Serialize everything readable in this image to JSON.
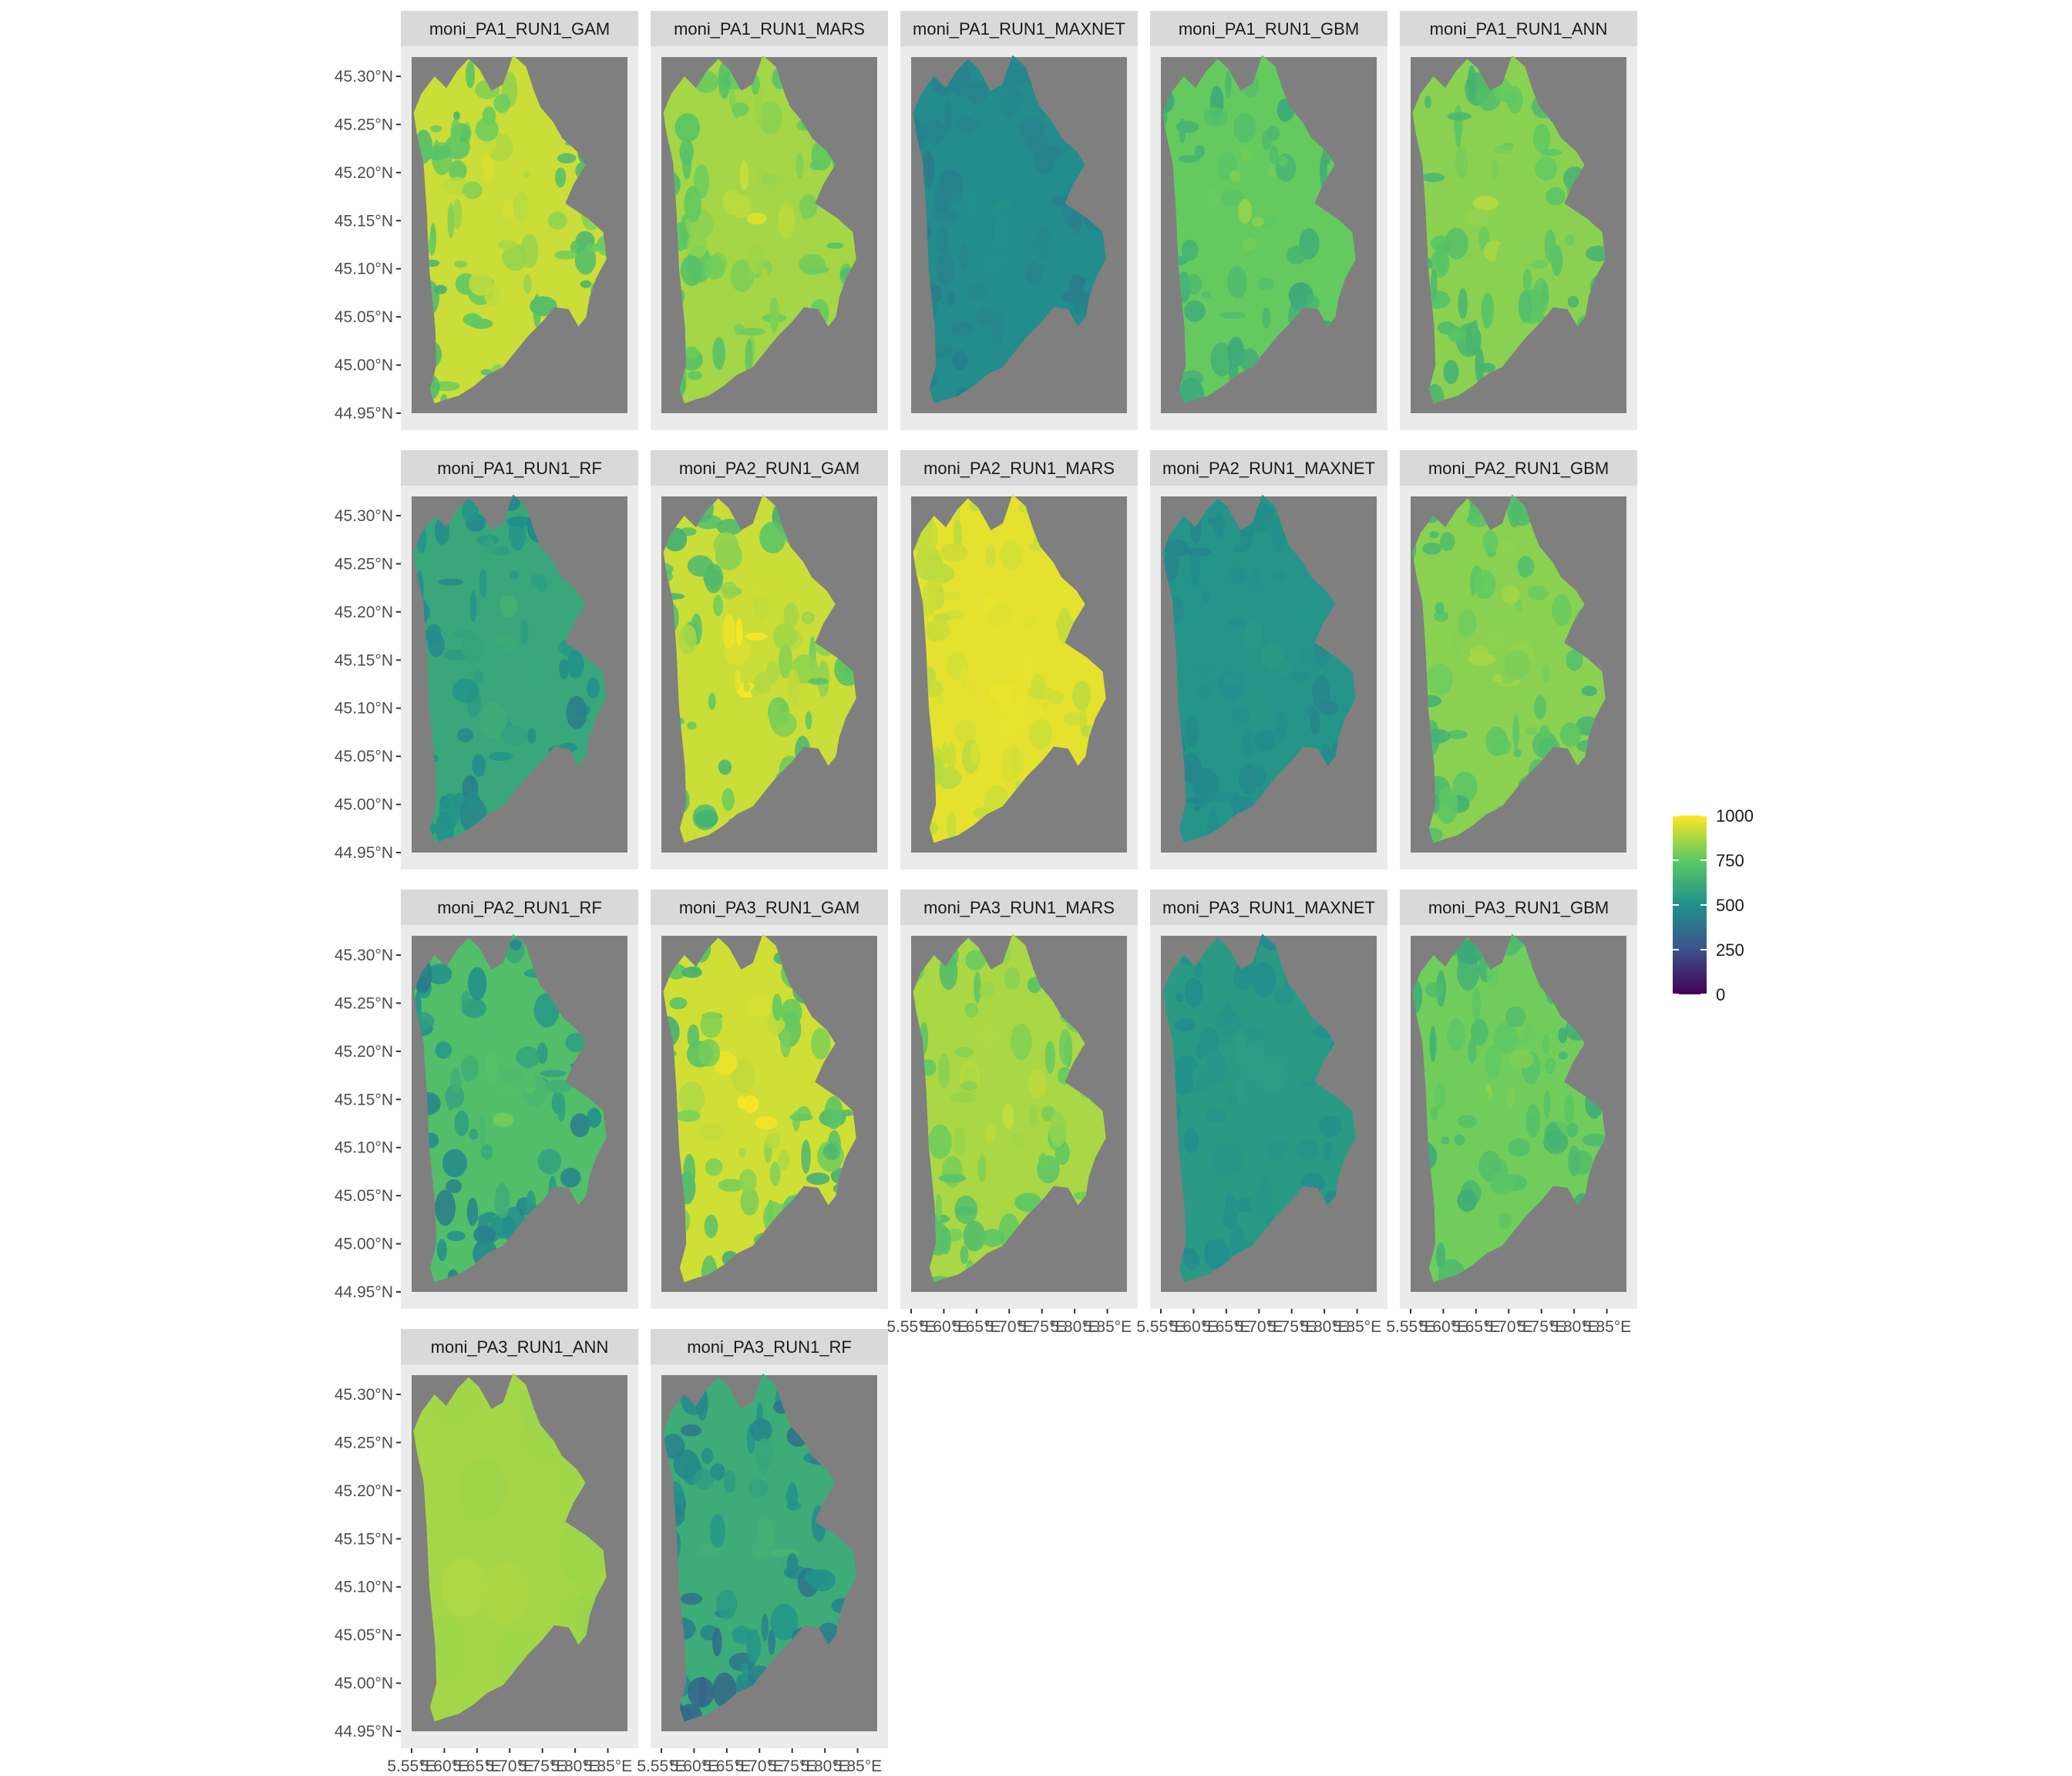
{
  "chart_data": {
    "type": "heatmap",
    "layout": {
      "rows": 4,
      "cols": 5
    },
    "x_axis": {
      "ticks": [
        "5.55°E",
        "5.60°E",
        "5.65°E",
        "5.70°E",
        "5.75°E",
        "5.80°E",
        "5.85°E"
      ],
      "xlim": [
        5.55,
        5.88
      ]
    },
    "y_axis": {
      "ticks": [
        "45.30°N",
        "45.25°N",
        "45.20°N",
        "45.15°N",
        "45.10°N",
        "45.05°N",
        "45.00°N",
        "44.95°N"
      ],
      "ylim": [
        44.95,
        45.32
      ]
    },
    "panel_background": "#7f7f7f",
    "strip_background": "#d9d9d9",
    "legend": {
      "title": "",
      "position": "right",
      "labels": [
        "1000",
        "750",
        "500",
        "250",
        "0"
      ],
      "range": [
        0,
        1000
      ],
      "colors": [
        "#440154",
        "#3b528b",
        "#21908c",
        "#5dc863",
        "#fde725"
      ]
    },
    "panels": [
      {
        "title": "moni_PA1_RUN1_GAM",
        "mean_value": 920,
        "spread": "high"
      },
      {
        "title": "moni_PA1_RUN1_MARS",
        "mean_value": 860,
        "spread": "medium"
      },
      {
        "title": "moni_PA1_RUN1_MAXNET",
        "mean_value": 480,
        "spread": "low"
      },
      {
        "title": "moni_PA1_RUN1_GBM",
        "mean_value": 760,
        "spread": "medium"
      },
      {
        "title": "moni_PA1_RUN1_ANN",
        "mean_value": 820,
        "spread": "medium"
      },
      {
        "title": "moni_PA1_RUN1_RF",
        "mean_value": 600,
        "spread": "medium"
      },
      {
        "title": "moni_PA2_RUN1_GAM",
        "mean_value": 920,
        "spread": "high"
      },
      {
        "title": "moni_PA2_RUN1_MARS",
        "mean_value": 960,
        "spread": "low"
      },
      {
        "title": "moni_PA2_RUN1_MAXNET",
        "mean_value": 520,
        "spread": "low"
      },
      {
        "title": "moni_PA2_RUN1_GBM",
        "mean_value": 820,
        "spread": "medium"
      },
      {
        "title": "moni_PA2_RUN1_RF",
        "mean_value": 700,
        "spread": "high"
      },
      {
        "title": "moni_PA3_RUN1_GAM",
        "mean_value": 930,
        "spread": "high"
      },
      {
        "title": "moni_PA3_RUN1_MARS",
        "mean_value": 870,
        "spread": "medium"
      },
      {
        "title": "moni_PA3_RUN1_MAXNET",
        "mean_value": 540,
        "spread": "low"
      },
      {
        "title": "moni_PA3_RUN1_GBM",
        "mean_value": 780,
        "spread": "medium"
      },
      {
        "title": "moni_PA3_RUN1_ANN",
        "mean_value": 860,
        "spread": "none"
      },
      {
        "title": "moni_PA3_RUN1_RF",
        "mean_value": 620,
        "spread": "high"
      }
    ]
  }
}
